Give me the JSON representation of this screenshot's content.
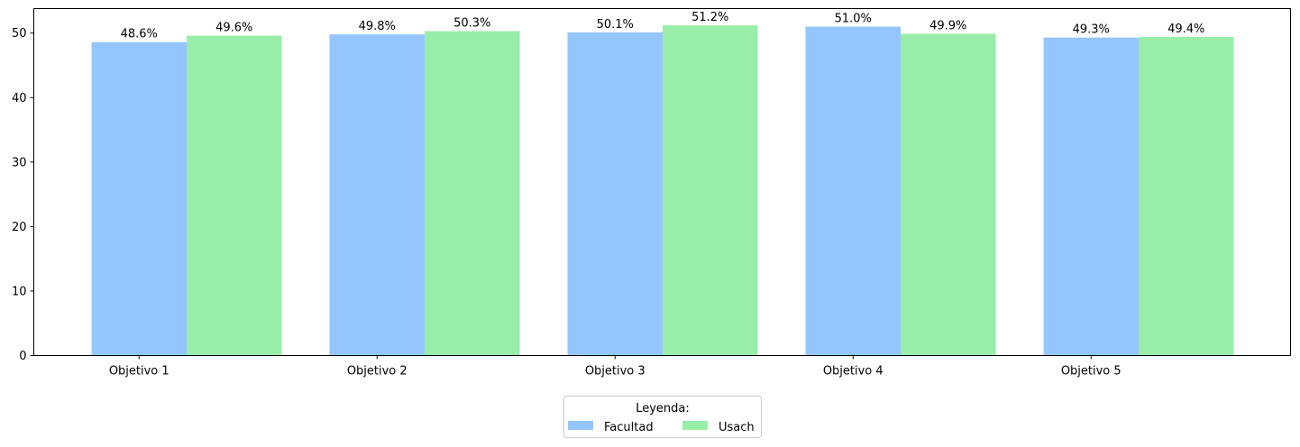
{
  "chart_data": {
    "type": "bar",
    "title": "",
    "xlabel": "",
    "ylabel": "",
    "categories": [
      "Objetivo 1",
      "Objetivo 2",
      "Objetivo 3",
      "Objetivo 4",
      "Objetivo 5"
    ],
    "series": [
      {
        "name": "Facultad",
        "color": "#94c6fd",
        "values": [
          48.6,
          49.8,
          50.1,
          51.0,
          49.3
        ],
        "labels": [
          "48.6%",
          "49.8%",
          "50.1%",
          "51.0%",
          "49.3%"
        ]
      },
      {
        "name": "Usach",
        "color": "#98eea9",
        "values": [
          49.6,
          50.3,
          51.2,
          49.9,
          49.4
        ],
        "labels": [
          "49.6%",
          "50.3%",
          "51.2%",
          "49.9%",
          "49.4%"
        ]
      }
    ],
    "ylim": [
      0,
      53.8
    ],
    "yticks": [
      "0",
      "10",
      "20",
      "30",
      "40",
      "50"
    ],
    "grid": false,
    "legend": {
      "title": "Leyenda:",
      "placement": "bottom-center"
    }
  }
}
